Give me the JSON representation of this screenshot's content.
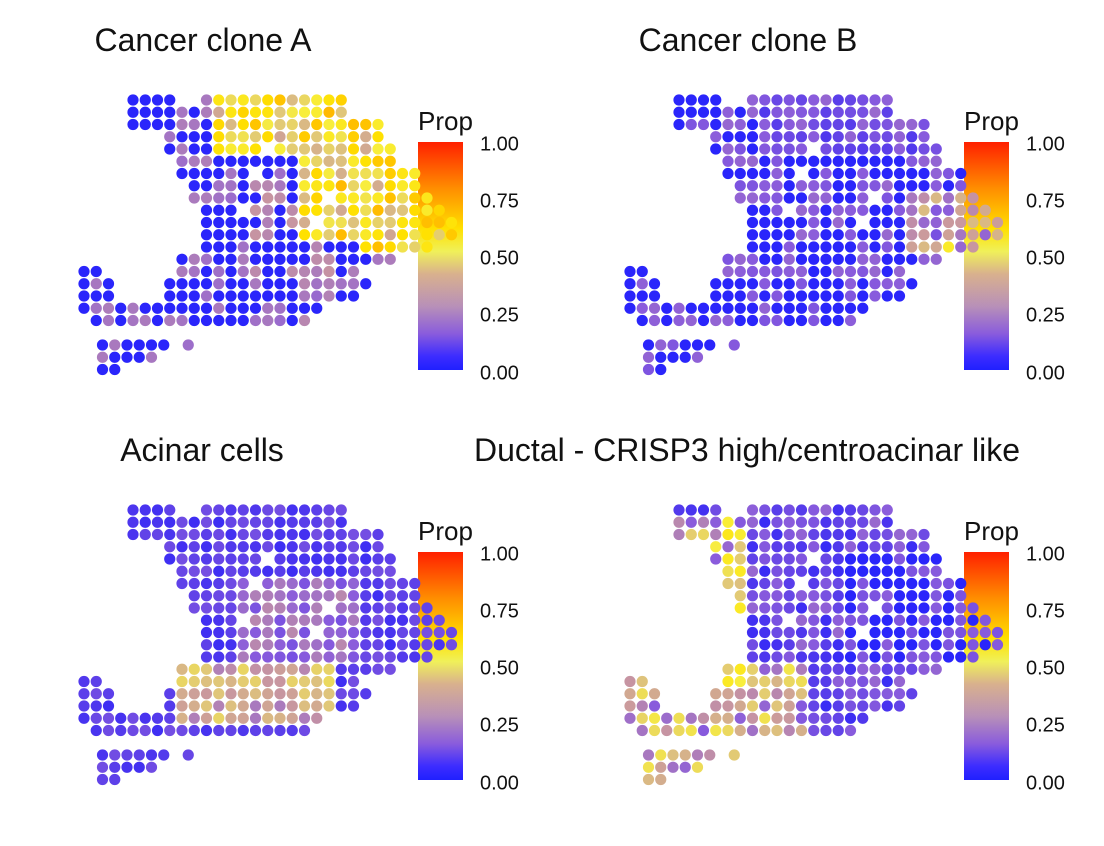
{
  "chart_data": [
    {
      "type": "scatter",
      "title": "Cancer clone A",
      "legend": {
        "title": "Prop",
        "ticks": [
          "1.00",
          "0.75",
          "0.50",
          "0.25",
          "0.00"
        ],
        "placement": "right"
      },
      "color_scale": {
        "min": 0,
        "max": 1,
        "colors": [
          "#2020ff",
          "#8a5cdc",
          "#d8b08e",
          "#ffe000",
          "#ff8c00",
          "#ff2000"
        ]
      },
      "profile": "cloneA"
    },
    {
      "type": "scatter",
      "title": "Cancer clone B",
      "legend": {
        "title": "Prop",
        "ticks": [
          "1.00",
          "0.75",
          "0.50",
          "0.25",
          "0.00"
        ],
        "placement": "right"
      },
      "color_scale": {
        "min": 0,
        "max": 1,
        "colors": [
          "#2020ff",
          "#8a5cdc",
          "#d8b08e",
          "#ffe000",
          "#ff8c00",
          "#ff2000"
        ]
      },
      "profile": "cloneB"
    },
    {
      "type": "scatter",
      "title": "Acinar cells",
      "legend": {
        "title": "Prop",
        "ticks": [
          "1.00",
          "0.75",
          "0.50",
          "0.25",
          "0.00"
        ],
        "placement": "right"
      },
      "color_scale": {
        "min": 0,
        "max": 1,
        "colors": [
          "#2020ff",
          "#8a5cdc",
          "#d8b08e",
          "#ffe000",
          "#ff8c00",
          "#ff2000"
        ]
      },
      "profile": "acinar"
    },
    {
      "type": "scatter",
      "title": "Ductal - CRISP3 high/centroacinar like",
      "legend": {
        "title": "Prop",
        "ticks": [
          "1.00",
          "0.75",
          "0.50",
          "0.25",
          "0.00"
        ],
        "placement": "right"
      },
      "color_scale": {
        "min": 0,
        "max": 1,
        "colors": [
          "#2020ff",
          "#8a5cdc",
          "#d8b08e",
          "#ffe000",
          "#ff8c00",
          "#ff2000"
        ]
      },
      "profile": "ductal"
    }
  ]
}
